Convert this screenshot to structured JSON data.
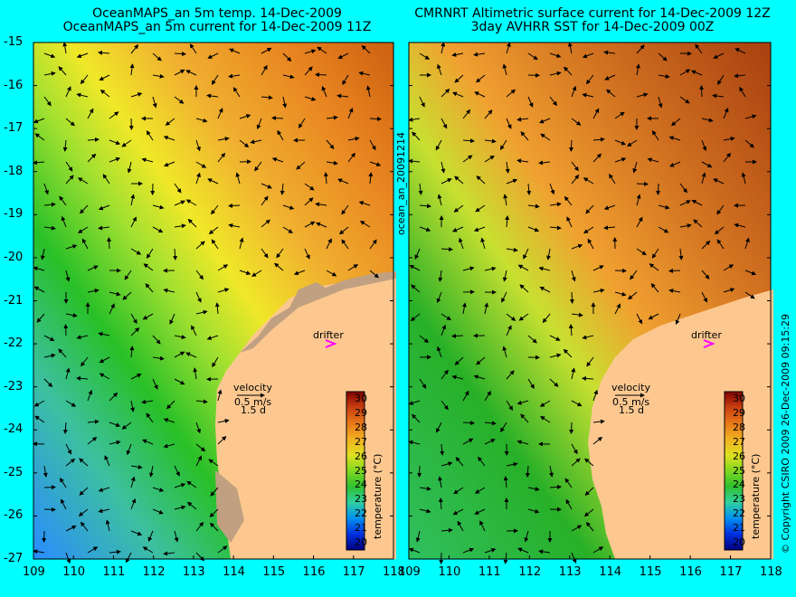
{
  "left_panel": {
    "title_line1": "OceanMAPS_an 5m temp. 14-Dec-2009",
    "title_line2": "OceanMAPS_an 5m current for 14-Dec-2009 11Z",
    "colorbar_label": "temperature (°C)",
    "drifter_label": "drifter",
    "velocity_label": "velocity",
    "velocity_scale": "0.5 m/s",
    "velocity_days": "1.5 d"
  },
  "right_panel": {
    "title_line1": "CMRNRT Altimetric surface current for 14-Dec-2009 12Z",
    "title_line2": "3day AVHRR SST for 14-Dec-2009 00Z",
    "colorbar_label": "temperature (°C)",
    "drifter_label": "drifter",
    "velocity_label": "velocity",
    "velocity_scale": "0.5 m/s",
    "velocity_days": "1.5 d"
  },
  "side_label": "ocean_an_20091214",
  "copyright": "© Copyright CSIRO 2009   26-Dec-2009 09:15:29",
  "y_ticks": [
    "-15",
    "-16",
    "-17",
    "-18",
    "-19",
    "-20",
    "-21",
    "-22",
    "-23",
    "-24",
    "-25",
    "-26",
    "-27"
  ],
  "x_ticks_left": [
    "109",
    "110",
    "111",
    "112",
    "113",
    "114",
    "115",
    "116",
    "117",
    "118"
  ],
  "x_ticks_right": [
    "109",
    "110",
    "111",
    "112",
    "113",
    "114",
    "115",
    "116",
    "117",
    "118"
  ],
  "colorbar_ticks": [
    "30",
    "29",
    "28",
    "27",
    "26",
    "25",
    "24",
    "23",
    "22",
    "21",
    "20"
  ],
  "colors": {
    "background": "#00ffff",
    "land": "#fcc890",
    "contour": "#40e0e0",
    "drifter": "#ff00ff"
  }
}
